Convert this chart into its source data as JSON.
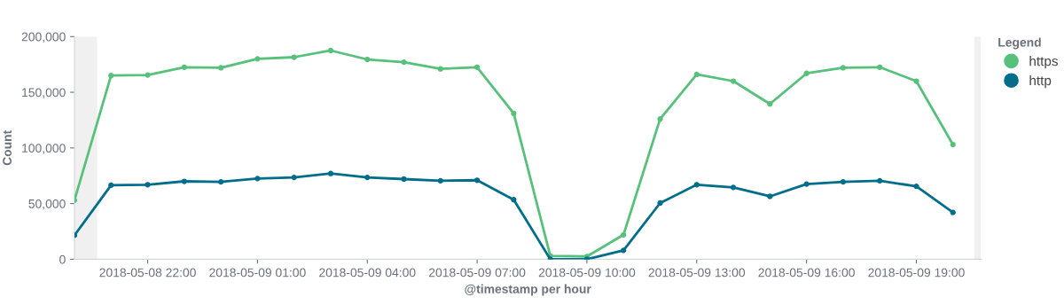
{
  "chart_data": {
    "type": "line",
    "x": [
      "2018-05-08T20:00",
      "2018-05-08T21:00",
      "2018-05-08T22:00",
      "2018-05-08T23:00",
      "2018-05-09T00:00",
      "2018-05-09T01:00",
      "2018-05-09T02:00",
      "2018-05-09T03:00",
      "2018-05-09T04:00",
      "2018-05-09T05:00",
      "2018-05-09T06:00",
      "2018-05-09T07:00",
      "2018-05-09T08:00",
      "2018-05-09T09:00",
      "2018-05-09T10:00",
      "2018-05-09T11:00",
      "2018-05-09T12:00",
      "2018-05-09T13:00",
      "2018-05-09T14:00",
      "2018-05-09T15:00",
      "2018-05-09T16:00",
      "2018-05-09T17:00",
      "2018-05-09T18:00",
      "2018-05-09T19:00",
      "2018-05-09T20:00"
    ],
    "series": [
      {
        "name": "https",
        "color": "#57c17b",
        "values": [
          53000,
          165000,
          165500,
          172500,
          172000,
          180000,
          181500,
          187500,
          179500,
          177000,
          171000,
          172500,
          131000,
          3000,
          2500,
          22000,
          126000,
          166000,
          160000,
          139500,
          167000,
          172000,
          172500,
          160000,
          103000
        ]
      },
      {
        "name": "http",
        "color": "#006e8a",
        "values": [
          21500,
          66500,
          67000,
          70000,
          69500,
          72500,
          73500,
          77000,
          73500,
          72000,
          70500,
          71000,
          53500,
          0,
          0,
          8000,
          50500,
          67000,
          64500,
          56500,
          67500,
          69500,
          70500,
          65500,
          42000
        ]
      }
    ],
    "xlabel": "@timestamp per hour",
    "ylabel": "Count",
    "legend_title": "Legend",
    "xlim": [
      "2018-05-08T20:00",
      "2018-05-09T20:46"
    ],
    "xticks": [
      {
        "value": "2018-05-08T22:00",
        "label": "2018-05-08 22:00"
      },
      {
        "value": "2018-05-09T01:00",
        "label": "2018-05-09 01:00"
      },
      {
        "value": "2018-05-09T04:00",
        "label": "2018-05-09 04:00"
      },
      {
        "value": "2018-05-09T07:00",
        "label": "2018-05-09 07:00"
      },
      {
        "value": "2018-05-09T10:00",
        "label": "2018-05-09 10:00"
      },
      {
        "value": "2018-05-09T13:00",
        "label": "2018-05-09 13:00"
      },
      {
        "value": "2018-05-09T16:00",
        "label": "2018-05-09 16:00"
      },
      {
        "value": "2018-05-09T19:00",
        "label": "2018-05-09 19:00"
      }
    ],
    "ylim": [
      0,
      200000
    ],
    "yticks": [
      {
        "value": 0,
        "label": "0"
      },
      {
        "value": 50000,
        "label": "50,000"
      },
      {
        "value": 100000,
        "label": "100,000"
      },
      {
        "value": 150000,
        "label": "150,000"
      },
      {
        "value": 200000,
        "label": "200,000"
      }
    ],
    "bands": [
      {
        "axis": "x",
        "from": "2018-05-08T20:00",
        "to": "2018-05-08T20:37",
        "color": "#f0f0f0"
      },
      {
        "axis": "x",
        "from": "2018-05-09T20:35",
        "to": "2018-05-09T20:46",
        "color": "#f0f0f0"
      }
    ],
    "grid": false,
    "legend": "top right",
    "marker": "circle",
    "line_style": "solid"
  }
}
